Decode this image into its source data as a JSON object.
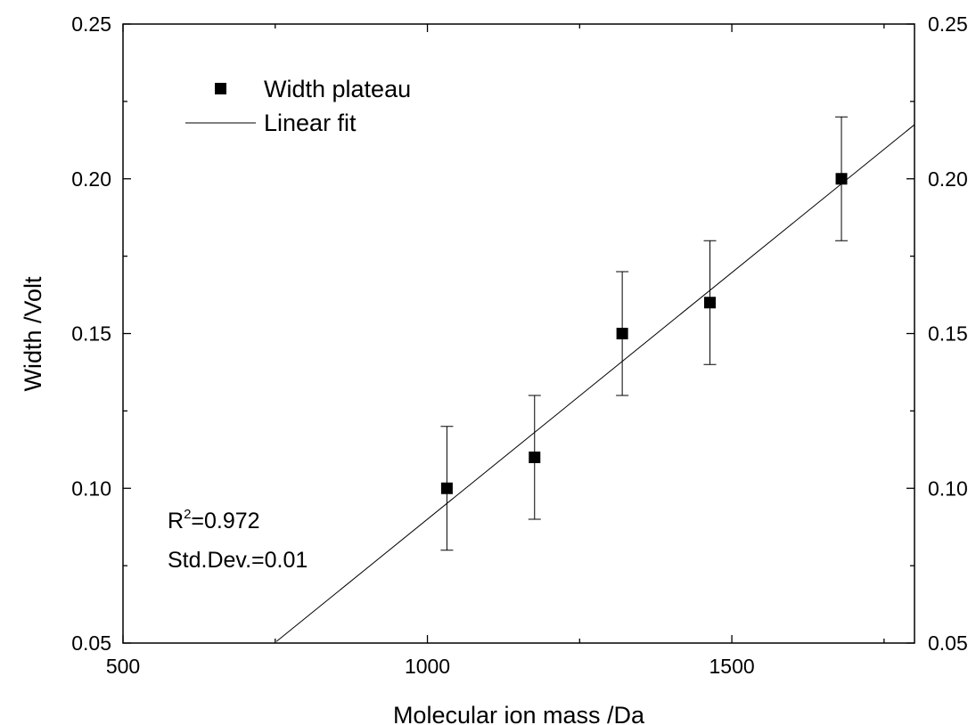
{
  "chart_data": {
    "type": "scatter",
    "xlabel": "Molecular ion mass /Da",
    "ylabel": "Width /Volt",
    "xlim": [
      500,
      1800
    ],
    "ylim": [
      0.05,
      0.25
    ],
    "x_major_ticks": [
      500,
      1000,
      1500
    ],
    "x_tick_labels": [
      "500",
      "1000",
      "1500"
    ],
    "x_minor_ticks": [
      750,
      1250,
      1750
    ],
    "y_major_ticks": [
      0.05,
      0.1,
      0.15,
      0.2,
      0.25
    ],
    "y_tick_labels": [
      "0.05",
      "0.10",
      "0.15",
      "0.20",
      "0.25"
    ],
    "y_minor_ticks": [
      0.075,
      0.125,
      0.175,
      0.225
    ],
    "right_axis_labels": true,
    "grid": false,
    "legend_position": "top-left",
    "series": [
      {
        "name": "Width plateau",
        "kind": "points",
        "marker": "square",
        "x": [
          1032,
          1176,
          1320,
          1464,
          1680
        ],
        "y": [
          0.1,
          0.11,
          0.15,
          0.16,
          0.2
        ],
        "error": [
          0.02,
          0.02,
          0.02,
          0.02,
          0.02
        ]
      },
      {
        "name": "Linear fit",
        "kind": "line",
        "x": [
          752,
          1800
        ],
        "y": [
          0.0505,
          0.2175
        ]
      }
    ],
    "annotations": {
      "r2_base": "R",
      "r2_sup": "2",
      "r2_value": "=0.972",
      "std_dev": "Std.Dev.=0.01"
    }
  }
}
